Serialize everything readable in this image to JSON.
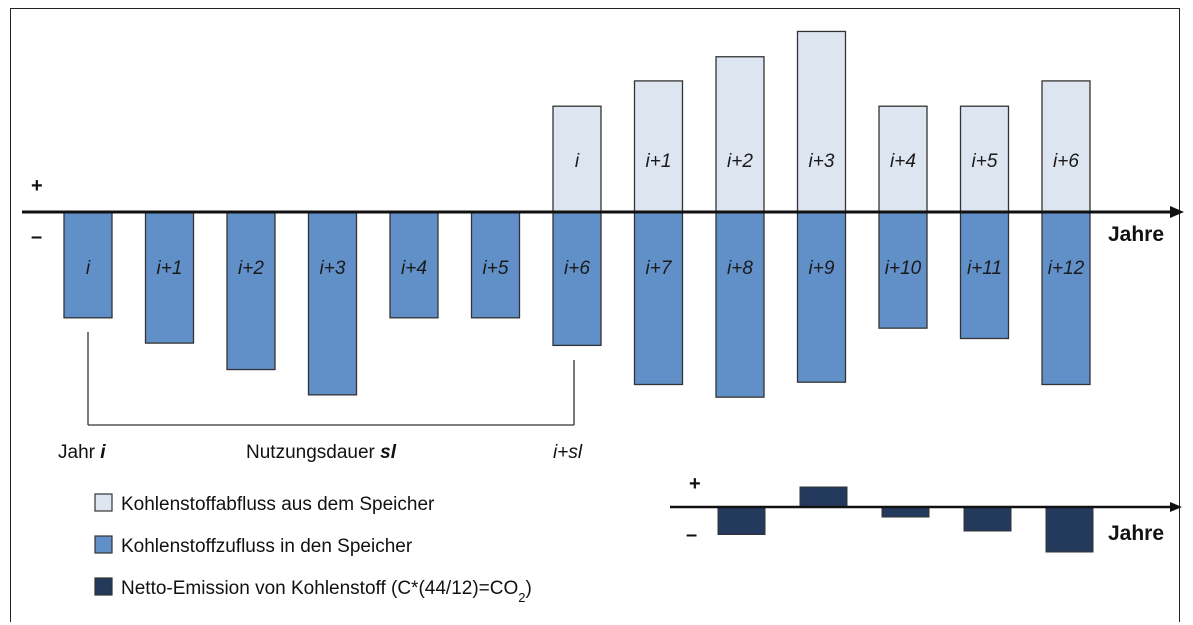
{
  "colors": {
    "outflow": "#dde5f0",
    "inflow": "#6190c8",
    "net": "#233a5c",
    "stroke": "#333333"
  },
  "axis": {
    "label": "Jahre",
    "plus": "+",
    "minus": "–"
  },
  "main_diagram": {
    "outflow_bars": [
      {
        "label": "i",
        "value": 0.92
      },
      {
        "label": "i+1",
        "value": 1.14
      },
      {
        "label": "i+2",
        "value": 1.35
      },
      {
        "label": "i+3",
        "value": 1.57
      },
      {
        "label": "i+4",
        "value": 0.92
      },
      {
        "label": "i+5",
        "value": 0.92
      },
      {
        "label": "i+6",
        "value": 1.14
      }
    ],
    "inflow_bars": [
      {
        "label": "i",
        "value": 0.92
      },
      {
        "label": "i+1",
        "value": 1.14
      },
      {
        "label": "i+2",
        "value": 1.37
      },
      {
        "label": "i+3",
        "value": 1.59
      },
      {
        "label": "i+4",
        "value": 0.92
      },
      {
        "label": "i+5",
        "value": 0.92
      },
      {
        "label": "i+6",
        "value": 1.16
      },
      {
        "label": "i+7",
        "value": 1.5
      },
      {
        "label": "i+8",
        "value": 1.61
      },
      {
        "label": "i+9",
        "value": 1.48
      },
      {
        "label": "i+10",
        "value": 1.01
      },
      {
        "label": "i+11",
        "value": 1.1
      },
      {
        "label": "i+12",
        "value": 1.5
      }
    ],
    "service_life": {
      "start_label_prefix": "Jahr ",
      "start_label_var": "i",
      "middle_label_prefix": "Nutzungsdauer ",
      "middle_label_var": "sl",
      "end_label": "i+sl"
    }
  },
  "net_diagram": {
    "values": [
      -0.55,
      0.4,
      -0.2,
      -0.48,
      -0.9
    ]
  },
  "legend": [
    {
      "key": "outflow",
      "text": "Kohlenstoffabfluss aus dem Speicher"
    },
    {
      "key": "inflow",
      "text": "Kohlenstoffzufluss in den Speicher"
    },
    {
      "key": "net",
      "text": "Netto-Emission von Kohlenstoff (C*(44/12)=CO",
      "sub": "2",
      "suffix": ")"
    }
  ]
}
